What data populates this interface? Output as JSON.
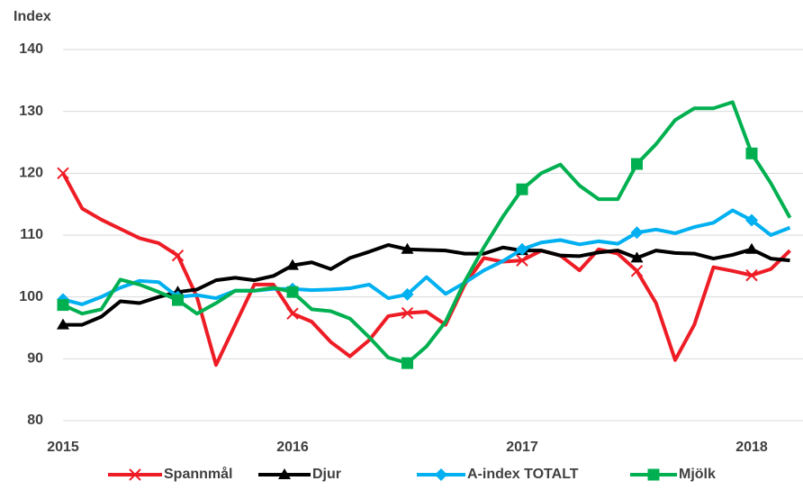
{
  "chart_data": {
    "type": "line",
    "y_title": "Index",
    "categories": [
      "2015",
      null,
      null,
      null,
      null,
      null,
      null,
      null,
      null,
      null,
      null,
      null,
      "2016",
      null,
      null,
      null,
      null,
      null,
      null,
      null,
      null,
      null,
      null,
      null,
      "2017",
      null,
      null,
      null,
      null,
      null,
      null,
      null,
      null,
      null,
      null,
      null,
      "2018",
      null,
      null
    ],
    "series": [
      {
        "name": "Spannmål",
        "color": "#ee1c25",
        "marker": "x",
        "values": [
          120,
          114.3,
          112.5,
          111,
          109.5,
          108.7,
          106.7,
          100,
          89,
          95.5,
          102,
          102,
          97.3,
          96,
          92.7,
          90.4,
          93,
          96.9,
          97.4,
          97.6,
          95.5,
          102,
          106.3,
          105.7,
          105.9,
          107.5,
          106.7,
          104.3,
          107.7,
          107,
          104.2,
          99,
          89.8,
          95.5,
          104.8,
          104.2,
          103.5,
          104.5,
          107.5
        ]
      },
      {
        "name": "Djur",
        "color": "#000000",
        "marker": "triangle",
        "values": [
          95.5,
          95.5,
          96.8,
          99.3,
          99,
          100,
          100.8,
          101.2,
          102.7,
          103.1,
          102.7,
          103.4,
          105.1,
          105.6,
          104.5,
          106.3,
          107.3,
          108.4,
          107.7,
          107.6,
          107.5,
          107,
          107,
          108,
          107.5,
          107.5,
          106.7,
          106.6,
          107.2,
          107.5,
          106.3,
          107.5,
          107.1,
          107,
          106.2,
          106.8,
          107.7,
          106.2,
          105.9
        ]
      },
      {
        "name": "A-index TOTALT",
        "color": "#00b0f0",
        "marker": "diamond",
        "values": [
          99.6,
          98.8,
          100,
          101.5,
          102.6,
          102.4,
          100,
          100.3,
          99.8,
          101,
          101,
          101.3,
          101.3,
          101.1,
          101.2,
          101.4,
          102,
          99.8,
          100.4,
          103.2,
          100.5,
          102.3,
          104.3,
          105.8,
          107.7,
          108.8,
          109.2,
          108.5,
          109,
          108.6,
          110.4,
          110.9,
          110.3,
          111.3,
          112,
          114,
          112.4,
          110,
          111.2
        ]
      },
      {
        "name": "Mjölk",
        "color": "#00b050",
        "marker": "square",
        "values": [
          98.7,
          97.3,
          98,
          102.8,
          102,
          100.8,
          99.5,
          97.3,
          99,
          101,
          101,
          101.5,
          100.8,
          98,
          97.7,
          96.5,
          93.5,
          90.2,
          89.3,
          92,
          96,
          102.5,
          108,
          113,
          117.4,
          120,
          121.4,
          118,
          115.8,
          115.8,
          121.5,
          124.7,
          128.6,
          130.5,
          130.5,
          131.5,
          123.2,
          118.4,
          112.8
        ]
      }
    ],
    "ylim": [
      80,
      140
    ],
    "yticks": [
      80,
      90,
      100,
      110,
      120,
      130,
      140
    ],
    "grid": true,
    "legend": "bottom"
  }
}
